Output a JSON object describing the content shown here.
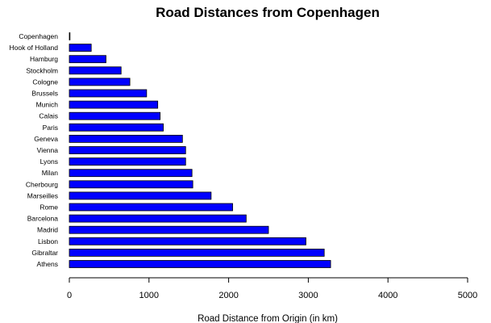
{
  "chart_data": {
    "type": "bar",
    "orientation": "horizontal",
    "title": "Road Distances from Copenhagen",
    "xlabel": "Road Distance from Origin (in km)",
    "ylabel": "",
    "xlim": [
      0,
      5000
    ],
    "xticks": [
      0,
      1000,
      2000,
      3000,
      4000,
      5000
    ],
    "categories": [
      "Copenhagen",
      "Hook of Holland",
      "Hamburg",
      "Stockholm",
      "Cologne",
      "Brussels",
      "Munich",
      "Calais",
      "Paris",
      "Geneva",
      "Vienna",
      "Lyons",
      "Milan",
      "Cherbourg",
      "Marseilles",
      "Rome",
      "Barcelona",
      "Madrid",
      "Lisbon",
      "Gibraltar",
      "Athens"
    ],
    "values": [
      0,
      275,
      460,
      650,
      760,
      970,
      1110,
      1140,
      1180,
      1420,
      1460,
      1460,
      1540,
      1550,
      1780,
      2050,
      2220,
      2500,
      2970,
      3200,
      3280
    ],
    "bar_color": "#0000ff",
    "grid": false,
    "legend": "none"
  }
}
